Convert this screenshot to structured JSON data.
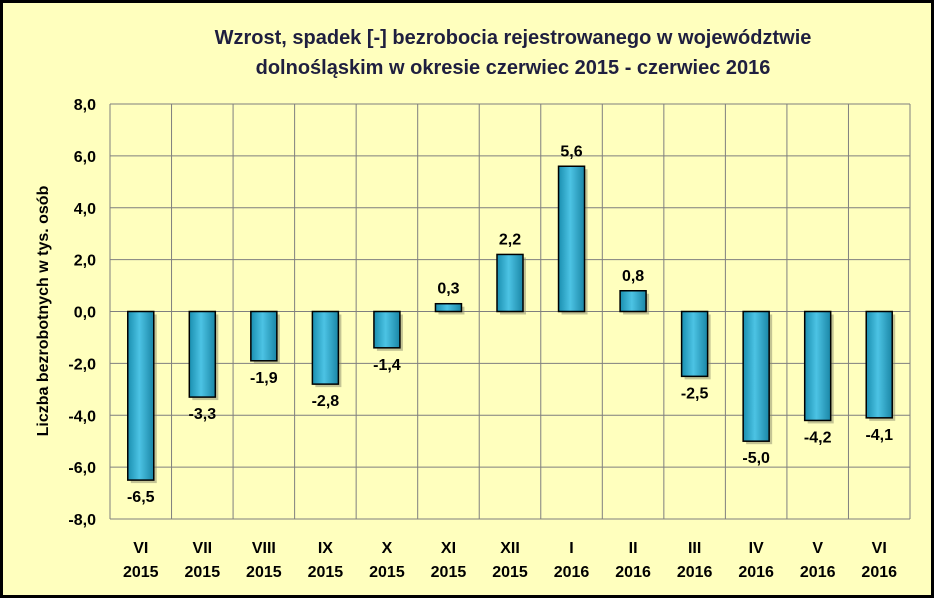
{
  "chart_data": {
    "type": "bar",
    "title_line1": "Wzrost, spadek [-] bezrobocia rejestrowanego w województwie",
    "title_line2": "dolnośląskim   w okresie czerwiec 2015 - czerwiec 2016",
    "ylabel": "Liczba bezrobotnych w tys. osób",
    "xlabel": "",
    "ylim": [
      -8,
      8
    ],
    "yticks": [
      8,
      6,
      4,
      2,
      0,
      -2,
      -4,
      -6,
      -8
    ],
    "ytick_labels": [
      "8,0",
      "6,0",
      "4,0",
      "2,0",
      "0,0",
      "-2,0",
      "-4,0",
      "-6,0",
      "-8,0"
    ],
    "grid": true,
    "legend": "none",
    "categories": [
      {
        "month": "VI",
        "year": "2015"
      },
      {
        "month": "VII",
        "year": "2015"
      },
      {
        "month": "VIII",
        "year": "2015"
      },
      {
        "month": "IX",
        "year": "2015"
      },
      {
        "month": "X",
        "year": "2015"
      },
      {
        "month": "XI",
        "year": "2015"
      },
      {
        "month": "XII",
        "year": "2015"
      },
      {
        "month": "I",
        "year": "2016"
      },
      {
        "month": "II",
        "year": "2016"
      },
      {
        "month": "III",
        "year": "2016"
      },
      {
        "month": "IV",
        "year": "2016"
      },
      {
        "month": "V",
        "year": "2016"
      },
      {
        "month": "VI",
        "year": "2016"
      }
    ],
    "values": [
      -6.5,
      -3.3,
      -1.9,
      -2.8,
      -1.4,
      0.3,
      2.2,
      5.6,
      0.8,
      -2.5,
      -5.0,
      -4.2,
      -4.1
    ],
    "data_labels": [
      "-6,5",
      "-3,3",
      "-1,9",
      "-2,8",
      "-1,4",
      "0,3",
      "2,2",
      "5,6",
      "0,8",
      "-2,5",
      "-5,0",
      "-4,2",
      "-4,1"
    ],
    "colors": {
      "bar_fill": "#29a8cc",
      "bar_stroke": "#000000",
      "background": "#ffffbe",
      "grid": "#7f7f7f"
    }
  }
}
